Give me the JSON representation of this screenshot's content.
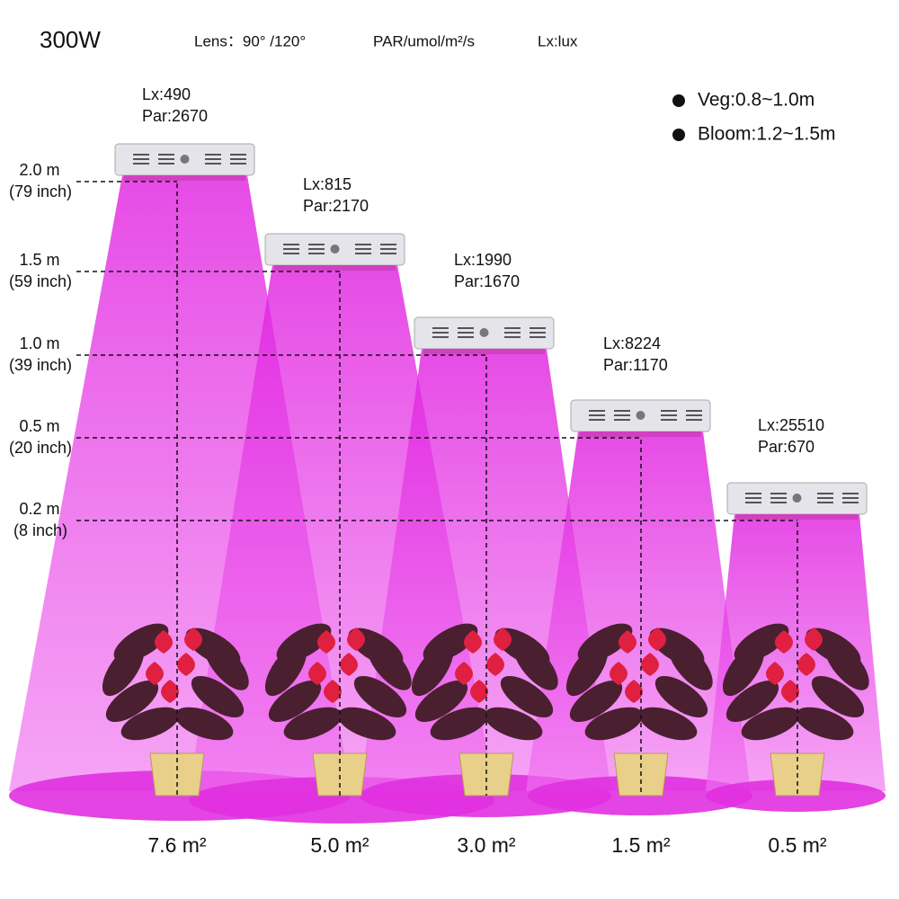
{
  "header": {
    "title": "300W",
    "lens": "Lens：90°  /120°",
    "par_unit": "PAR/umol/m²/s",
    "lx_unit": "Lx:lux"
  },
  "legend": [
    "Veg:0.8~1.0m",
    "Bloom:1.2~1.5m"
  ],
  "heights": [
    {
      "m": "2.0 m",
      "inch": "(79 inch)"
    },
    {
      "m": "1.5 m",
      "inch": "(59 inch)"
    },
    {
      "m": "1.0 m",
      "inch": "(39 inch)"
    },
    {
      "m": "0.5 m",
      "inch": "(20 inch)"
    },
    {
      "m": "0.2 m",
      "inch": "(8 inch)"
    }
  ],
  "lamps": [
    {
      "lx": "Lx:490",
      "par": "Par:2670",
      "area": "7.6 m²"
    },
    {
      "lx": "Lx:815",
      "par": "Par:2170",
      "area": "5.0 m²"
    },
    {
      "lx": "Lx:1990",
      "par": "Par:1670",
      "area": "3.0 m²"
    },
    {
      "lx": "Lx:8224",
      "par": "Par:1170",
      "area": "1.5 m²"
    },
    {
      "lx": "Lx:25510",
      "par": "Par:670",
      "area": "0.5 m²"
    }
  ]
}
